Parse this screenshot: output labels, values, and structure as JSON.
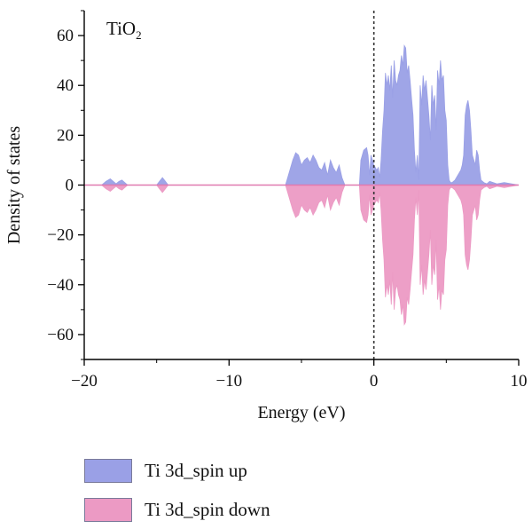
{
  "panel_label": {
    "main": "TiO",
    "sub": "2"
  },
  "chart_data": {
    "type": "area",
    "title": "",
    "xlabel": "Energy (eV)",
    "ylabel": "Density of states",
    "xlim": [
      -20,
      10
    ],
    "ylim": [
      -70,
      70
    ],
    "xticks": [
      -20,
      -10,
      0,
      10
    ],
    "xtick_labels": [
      "−20",
      "−10",
      "0",
      "10"
    ],
    "yticks": [
      60,
      40,
      20,
      0,
      -20,
      -40,
      -60
    ],
    "ytick_labels": [
      "60",
      "40",
      "20",
      "0",
      "−20",
      "−40",
      "−60"
    ],
    "fermi_level": 0,
    "grid": false,
    "legend_position": "bottom",
    "series": [
      {
        "name": "Ti 3d_spin up",
        "color": "#9aa0e6",
        "x": [
          -20,
          -18.8,
          -18.5,
          -18.2,
          -18.0,
          -17.8,
          -17.6,
          -17.4,
          -17.2,
          -17.0,
          -16.8,
          -15.0,
          -14.8,
          -14.6,
          -14.4,
          -14.2,
          -6.5,
          -6.1,
          -5.8,
          -5.6,
          -5.4,
          -5.2,
          -5.0,
          -4.8,
          -4.6,
          -4.4,
          -4.2,
          -4.0,
          -3.8,
          -3.6,
          -3.4,
          -3.2,
          -3.0,
          -2.8,
          -2.6,
          -2.4,
          -2.2,
          -2.0,
          -1.0,
          -0.9,
          -0.7,
          -0.5,
          -0.4,
          -0.3,
          -0.2,
          -0.1,
          0.0,
          0.1,
          0.2,
          0.3,
          0.4,
          0.5,
          0.6,
          0.7,
          0.8,
          0.9,
          1.0,
          1.1,
          1.2,
          1.3,
          1.4,
          1.5,
          1.6,
          1.7,
          1.8,
          1.9,
          2.0,
          2.1,
          2.2,
          2.3,
          2.4,
          2.5,
          2.6,
          2.7,
          2.8,
          2.9,
          3.0,
          3.1,
          3.2,
          3.3,
          3.4,
          3.5,
          3.6,
          3.7,
          3.8,
          3.9,
          4.0,
          4.1,
          4.2,
          4.3,
          4.4,
          4.5,
          4.6,
          4.7,
          4.8,
          4.9,
          5.0,
          5.1,
          5.2,
          5.3,
          5.4,
          5.6,
          5.8,
          6.0,
          6.1,
          6.2,
          6.3,
          6.4,
          6.5,
          6.6,
          6.7,
          6.8,
          6.9,
          7.0,
          7.1,
          7.2,
          7.3,
          7.4,
          7.6,
          7.8,
          8.0,
          8.5,
          9.0,
          10
        ],
        "y": [
          0,
          0,
          1.5,
          2.5,
          1.5,
          0.5,
          1.5,
          2.0,
          1.0,
          0,
          0,
          0,
          1.5,
          3.0,
          1.5,
          0,
          0,
          0,
          6,
          10,
          13,
          12,
          8,
          10,
          11,
          9,
          12,
          10,
          7,
          6,
          9,
          4,
          10,
          7,
          5,
          8,
          3,
          0,
          0,
          10,
          14,
          15,
          12,
          4,
          12,
          10,
          8,
          7,
          6,
          7,
          3,
          10,
          22,
          30,
          45,
          40,
          44,
          38,
          48,
          35,
          50,
          42,
          40,
          44,
          46,
          52,
          48,
          56,
          55,
          45,
          48,
          42,
          35,
          28,
          14,
          5,
          12,
          2,
          40,
          32,
          44,
          38,
          42,
          35,
          28,
          18,
          40,
          32,
          36,
          22,
          46,
          40,
          50,
          42,
          44,
          30,
          26,
          8,
          2,
          1,
          1,
          2,
          4,
          6,
          8,
          12,
          28,
          32,
          34,
          30,
          22,
          12,
          10,
          8,
          14,
          12,
          6,
          2,
          1,
          0.5,
          1.5,
          0.5,
          1,
          0
        ]
      },
      {
        "name": "Ti 3d_spin down",
        "color": "#ec9ac4",
        "x": [
          -20,
          -18.8,
          -18.5,
          -18.2,
          -18.0,
          -17.8,
          -17.6,
          -17.4,
          -17.2,
          -17.0,
          -16.8,
          -15.0,
          -14.8,
          -14.6,
          -14.4,
          -14.2,
          -6.5,
          -6.1,
          -5.8,
          -5.6,
          -5.4,
          -5.2,
          -5.0,
          -4.8,
          -4.6,
          -4.4,
          -4.2,
          -4.0,
          -3.8,
          -3.6,
          -3.4,
          -3.2,
          -3.0,
          -2.8,
          -2.6,
          -2.4,
          -2.2,
          -2.0,
          -1.0,
          -0.9,
          -0.7,
          -0.5,
          -0.4,
          -0.3,
          -0.2,
          -0.1,
          0.0,
          0.1,
          0.2,
          0.3,
          0.4,
          0.5,
          0.6,
          0.7,
          0.8,
          0.9,
          1.0,
          1.1,
          1.2,
          1.3,
          1.4,
          1.5,
          1.6,
          1.7,
          1.8,
          1.9,
          2.0,
          2.1,
          2.2,
          2.3,
          2.4,
          2.5,
          2.6,
          2.7,
          2.8,
          2.9,
          3.0,
          3.1,
          3.2,
          3.3,
          3.4,
          3.5,
          3.6,
          3.7,
          3.8,
          3.9,
          4.0,
          4.1,
          4.2,
          4.3,
          4.4,
          4.5,
          4.6,
          4.7,
          4.8,
          4.9,
          5.0,
          5.1,
          5.2,
          5.3,
          5.4,
          5.6,
          5.8,
          6.0,
          6.1,
          6.2,
          6.3,
          6.4,
          6.5,
          6.6,
          6.7,
          6.8,
          6.9,
          7.0,
          7.1,
          7.2,
          7.3,
          7.4,
          7.6,
          7.8,
          8.0,
          8.5,
          9.0,
          10
        ],
        "y": [
          0,
          0,
          -1.5,
          -2.5,
          -1.5,
          -0.5,
          -1.5,
          -2.0,
          -1.0,
          0,
          0,
          0,
          -1.5,
          -3.0,
          -1.5,
          0,
          0,
          0,
          -6,
          -10,
          -13,
          -12,
          -8,
          -10,
          -11,
          -9,
          -12,
          -10,
          -7,
          -6,
          -9,
          -4,
          -10,
          -7,
          -5,
          -8,
          -3,
          0,
          0,
          -10,
          -14,
          -15,
          -12,
          -4,
          -12,
          -10,
          -8,
          -7,
          -6,
          -7,
          -3,
          -10,
          -22,
          -30,
          -45,
          -40,
          -44,
          -38,
          -48,
          -35,
          -50,
          -42,
          -40,
          -44,
          -46,
          -52,
          -48,
          -56,
          -55,
          -45,
          -48,
          -42,
          -35,
          -28,
          -14,
          -5,
          -12,
          -2,
          -40,
          -32,
          -44,
          -38,
          -42,
          -35,
          -28,
          -18,
          -40,
          -32,
          -36,
          -22,
          -46,
          -40,
          -50,
          -42,
          -44,
          -30,
          -26,
          -8,
          -2,
          -1,
          -1,
          -2,
          -4,
          -6,
          -8,
          -12,
          -28,
          -32,
          -34,
          -30,
          -22,
          -12,
          -10,
          -8,
          -14,
          -12,
          -6,
          -2,
          -1,
          -0.5,
          -1.5,
          -0.5,
          -1,
          0
        ]
      }
    ]
  }
}
